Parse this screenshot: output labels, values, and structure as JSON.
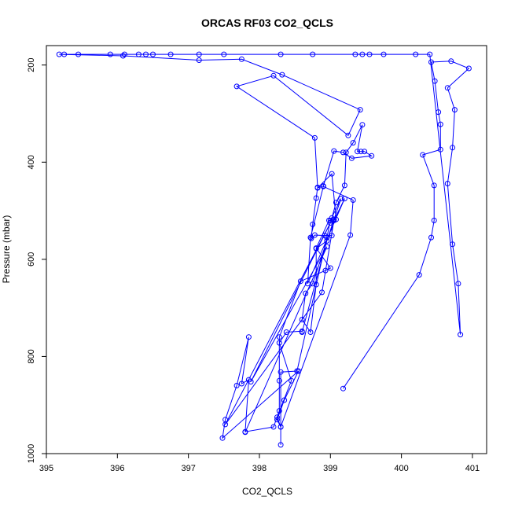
{
  "chart_data": {
    "type": "line",
    "title": "ORCAS RF03 CO2_QCLS",
    "xlabel": "CO2_QCLS",
    "ylabel": "Pressure (mbar)",
    "xlim": [
      395,
      401.2
    ],
    "ylim": [
      1000,
      160
    ],
    "y_reversed": true,
    "x_ticks": [
      "395",
      "396",
      "397",
      "398",
      "399",
      "400",
      "401"
    ],
    "y_ticks": [
      "200",
      "400",
      "600",
      "800",
      "1000"
    ],
    "line_color": "#0000ff",
    "marker": "open-circle",
    "grid": false,
    "legend": "none",
    "series": [
      {
        "points": [
          [
            399.18,
            866
          ],
          [
            400.25,
            632
          ],
          [
            400.42,
            555
          ],
          [
            400.46,
            520
          ],
          [
            400.46,
            448
          ],
          [
            400.3,
            385
          ],
          [
            400.55,
            374
          ],
          [
            400.55,
            322
          ],
          [
            400.52,
            297
          ],
          [
            400.47,
            233
          ],
          [
            400.42,
            194
          ],
          [
            400.7,
            192
          ],
          [
            400.95,
            207
          ],
          [
            400.65,
            247
          ],
          [
            400.75,
            292
          ],
          [
            400.72,
            370
          ],
          [
            400.65,
            444
          ],
          [
            400.72,
            569
          ],
          [
            400.8,
            650
          ],
          [
            400.83,
            755
          ],
          [
            400.4,
            178
          ],
          [
            400.2,
            178
          ],
          [
            399.75,
            178
          ],
          [
            399.55,
            178
          ],
          [
            399.45,
            178
          ],
          [
            399.35,
            178
          ],
          [
            398.75,
            178
          ],
          [
            398.3,
            178
          ],
          [
            397.5,
            178
          ],
          [
            397.15,
            178
          ],
          [
            396.75,
            178
          ],
          [
            396.5,
            178
          ],
          [
            396.4,
            178
          ],
          [
            396.3,
            178
          ],
          [
            396.1,
            178
          ],
          [
            395.9,
            178
          ],
          [
            395.45,
            178
          ],
          [
            395.25,
            178
          ],
          [
            395.18,
            178
          ],
          [
            396.08,
            181
          ],
          [
            397.15,
            190
          ],
          [
            397.75,
            188
          ],
          [
            398.32,
            220
          ],
          [
            399.42,
            292
          ],
          [
            399.25,
            345
          ],
          [
            398.2,
            222
          ],
          [
            397.68,
            244
          ],
          [
            398.78,
            350
          ],
          [
            398.82,
            452
          ],
          [
            398.8,
            474
          ],
          [
            398.75,
            528
          ],
          [
            398.73,
            557
          ],
          [
            398.78,
            550
          ],
          [
            398.92,
            551
          ],
          [
            399.02,
            551
          ],
          [
            399.02,
            515
          ],
          [
            399.08,
            483
          ],
          [
            399.2,
            448
          ],
          [
            399.22,
            380
          ],
          [
            399.32,
            360
          ],
          [
            399.45,
            323
          ],
          [
            399.38,
            378
          ],
          [
            399.43,
            378
          ],
          [
            399.48,
            378
          ],
          [
            399.58,
            387
          ],
          [
            399.3,
            392
          ],
          [
            399.18,
            380
          ],
          [
            399.05,
            377
          ],
          [
            398.9,
            449
          ],
          [
            398.82,
            453
          ],
          [
            399.02,
            424
          ],
          [
            399.08,
            518
          ],
          [
            398.98,
            520
          ],
          [
            398.8,
            577
          ],
          [
            399.0,
            618
          ],
          [
            398.93,
            623
          ],
          [
            398.58,
            645
          ],
          [
            398.28,
            760
          ],
          [
            398.28,
            850
          ],
          [
            398.28,
            912
          ],
          [
            398.2,
            945
          ],
          [
            397.8,
            955
          ],
          [
            397.85,
            848
          ],
          [
            397.75,
            856
          ],
          [
            397.85,
            760
          ],
          [
            397.68,
            860
          ],
          [
            397.52,
            930
          ],
          [
            397.48,
            968
          ],
          [
            398.55,
            830
          ],
          [
            398.35,
            890
          ],
          [
            398.25,
            930
          ],
          [
            398.3,
            945
          ],
          [
            398.3,
            982
          ],
          [
            398.3,
            832
          ],
          [
            398.53,
            830
          ],
          [
            398.95,
            555
          ],
          [
            399.0,
            520
          ],
          [
            399.15,
            475
          ],
          [
            399.05,
            518
          ],
          [
            398.75,
            650
          ],
          [
            398.65,
            670
          ],
          [
            398.6,
            724
          ],
          [
            398.72,
            750
          ],
          [
            398.8,
            652
          ],
          [
            398.8,
            578
          ],
          [
            398.95,
            562
          ],
          [
            398.6,
            750
          ],
          [
            398.6,
            748
          ],
          [
            398.38,
            750
          ],
          [
            398.28,
            772
          ],
          [
            398.45,
            850
          ],
          [
            398.25,
            925
          ],
          [
            398.3,
            945
          ],
          [
            399.28,
            550
          ],
          [
            399.32,
            478
          ],
          [
            398.9,
            450
          ],
          [
            398.72,
            555
          ],
          [
            398.68,
            650
          ],
          [
            399.2,
            475
          ],
          [
            399.05,
            520
          ],
          [
            398.88,
            668
          ],
          [
            397.52,
            940
          ],
          [
            399.0,
            525
          ],
          [
            397.88,
            852
          ],
          [
            398.95,
            574
          ],
          [
            397.8,
            956
          ]
        ]
      }
    ]
  }
}
